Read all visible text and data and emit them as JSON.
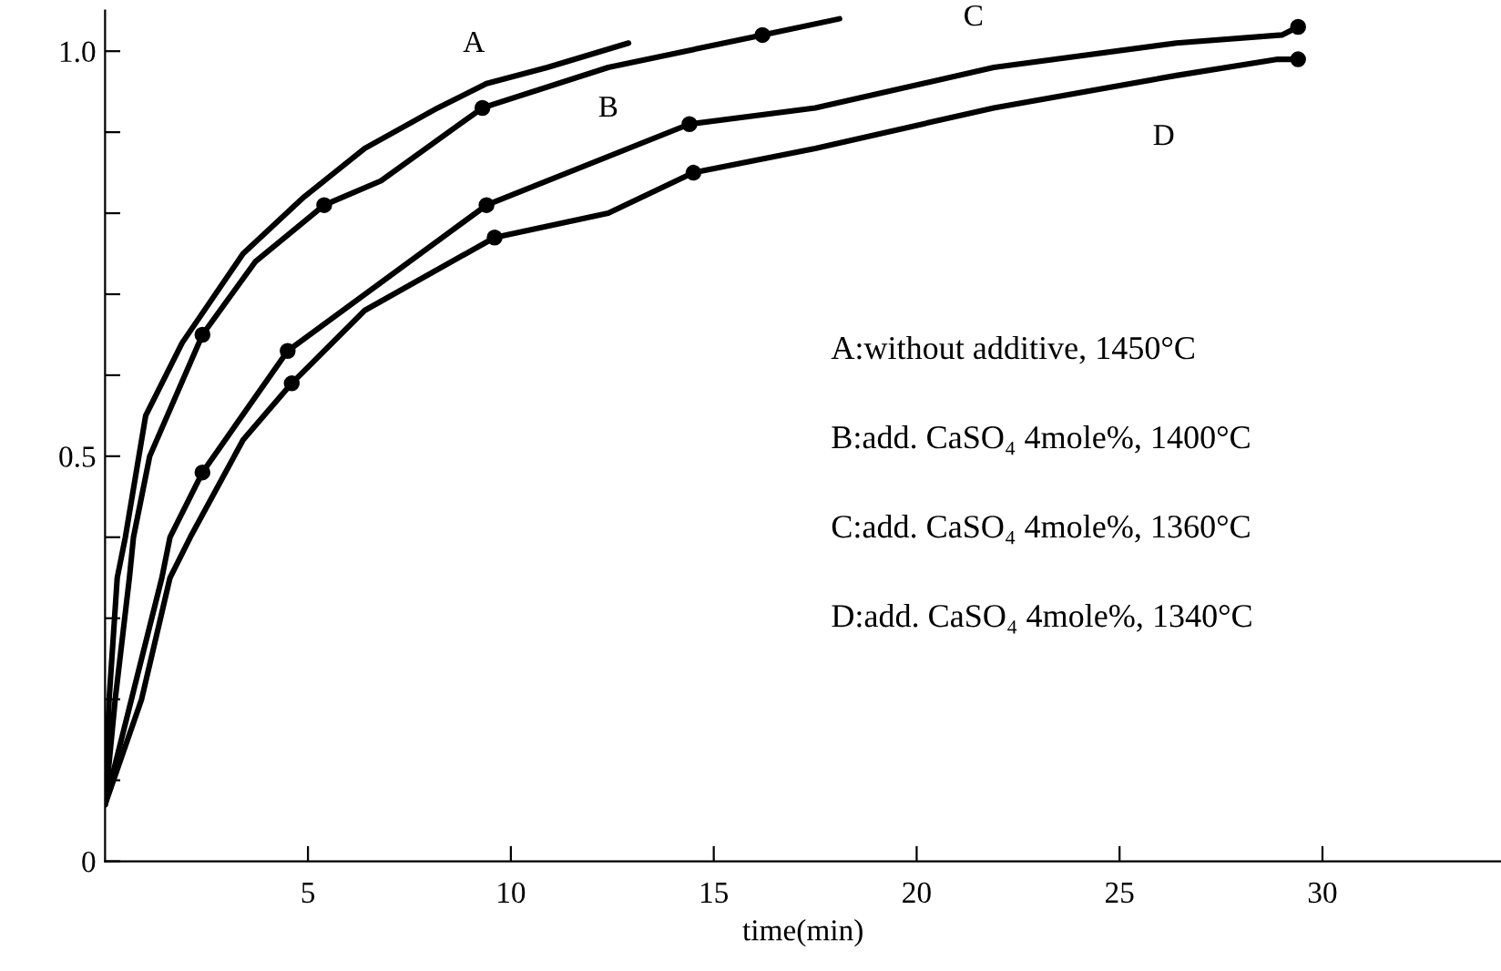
{
  "chart_data": {
    "type": "line",
    "xlabel": "time(min)",
    "xlim": [
      0,
      34.4
    ],
    "ylim": [
      0,
      1.05
    ],
    "xticks": [
      5,
      10,
      15,
      20,
      25,
      30
    ],
    "yticks": [
      {
        "value": 0,
        "label": "0"
      },
      {
        "value": 0.1,
        "label": null
      },
      {
        "value": 0.2,
        "label": null
      },
      {
        "value": 0.3,
        "label": null
      },
      {
        "value": 0.4,
        "label": null
      },
      {
        "value": 0.5,
        "label": "0.5"
      },
      {
        "value": 0.6,
        "label": null
      },
      {
        "value": 0.7,
        "label": null
      },
      {
        "value": 0.8,
        "label": null
      },
      {
        "value": 0.9,
        "label": null
      },
      {
        "value": 1.0,
        "label": "1.0"
      }
    ],
    "grid": false,
    "legend": false,
    "series": [
      {
        "name": "A",
        "color": "#000000",
        "marker": "none",
        "x": [
          0,
          0.1,
          0.3,
          0.5,
          1.0,
          1.9,
          3.4,
          4.9,
          6.4,
          8.2,
          9.4,
          10.9,
          12.9
        ],
        "values": [
          0.07,
          0.2,
          0.35,
          0.4,
          0.55,
          0.64,
          0.75,
          0.82,
          0.88,
          0.93,
          0.96,
          0.98,
          1.01
        ]
      },
      {
        "name": "B",
        "color": "#000000",
        "marker": "none",
        "x": [
          0,
          0.25,
          0.6,
          0.7,
          1.1,
          2.4,
          3.7,
          5.4,
          6.8,
          9.3,
          12.4,
          16.2,
          18.1
        ],
        "values": [
          0.07,
          0.2,
          0.35,
          0.4,
          0.5,
          0.65,
          0.74,
          0.81,
          0.84,
          0.93,
          0.98,
          1.02,
          1.04
        ]
      },
      {
        "name": "C",
        "color": "#000000",
        "marker": "none",
        "x": [
          0,
          0.65,
          1.4,
          1.6,
          2.4,
          4.5,
          9.4,
          14.4,
          17.5,
          21.9,
          26.4,
          29.0,
          29.4
        ],
        "values": [
          0.07,
          0.2,
          0.35,
          0.4,
          0.48,
          0.63,
          0.81,
          0.91,
          0.93,
          0.98,
          1.01,
          1.02,
          1.03
        ]
      },
      {
        "name": "D",
        "color": "#000000",
        "marker": "none",
        "x": [
          0,
          0.9,
          1.6,
          2.1,
          3.4,
          4.6,
          6.4,
          9.6,
          12.4,
          14.5,
          17.5,
          21.9,
          26.4,
          28.9,
          29.4
        ],
        "values": [
          0.07,
          0.2,
          0.35,
          0.4,
          0.52,
          0.59,
          0.68,
          0.77,
          0.8,
          0.85,
          0.88,
          0.93,
          0.97,
          0.99,
          0.99
        ]
      },
      {
        "type": "scatter",
        "color": "#000000",
        "marker": "circle",
        "x": [
          2.4,
          5.4,
          9.3,
          16.2
        ],
        "values": [
          0.65,
          0.81,
          0.93,
          1.02
        ]
      },
      {
        "type": "scatter",
        "color": "#000000",
        "marker": "circle",
        "x": [
          2.4,
          4.5,
          9.4,
          14.4,
          29.4
        ],
        "values": [
          0.48,
          0.63,
          0.81,
          0.91,
          1.03
        ]
      },
      {
        "type": "scatter",
        "color": "#000000",
        "marker": "circle",
        "x": [
          4.6,
          9.6,
          14.5,
          29.4
        ],
        "values": [
          0.59,
          0.77,
          0.85,
          0.99
        ]
      }
    ],
    "annotations": [
      "A:without additive, 1450°C",
      "B:add. CaSO₄ 4mole%, 1400°C",
      "C:add. CaSO₄ 4mole%, 1360°C",
      "D:add. CaSO₄ 4mole%, 1340°C"
    ]
  }
}
